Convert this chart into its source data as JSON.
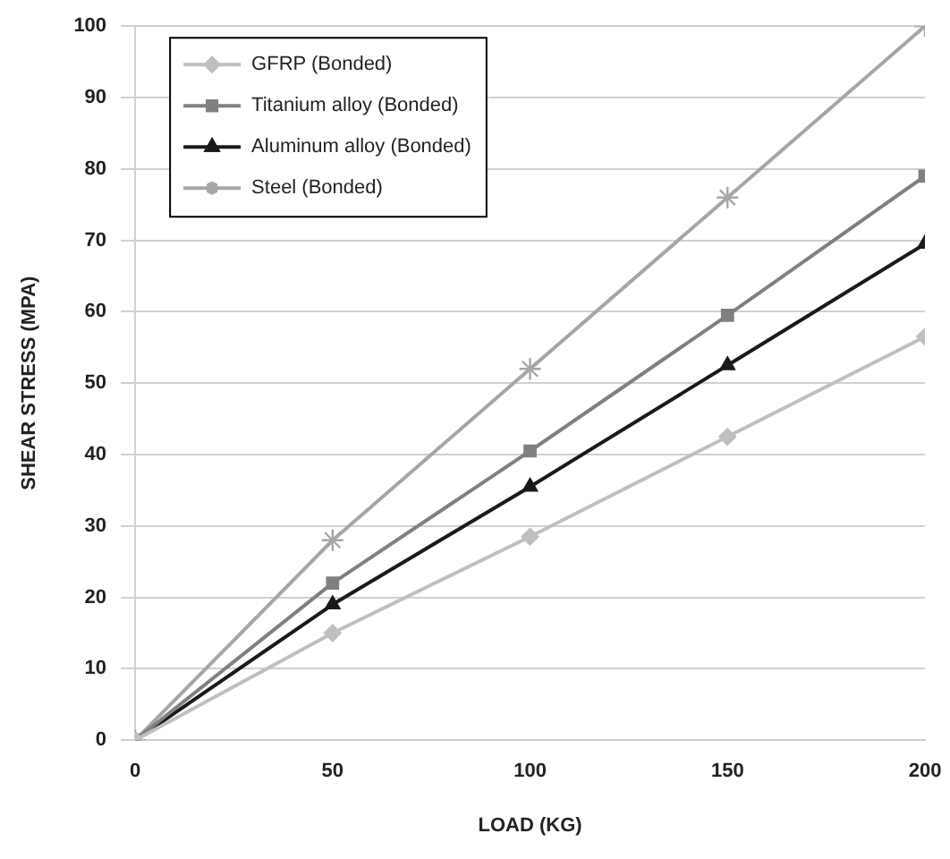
{
  "chart_data": {
    "type": "line",
    "xlabel": "LOAD (KG)",
    "ylabel": "SHEAR STRESS (MPA)",
    "x": [
      0,
      50,
      100,
      150,
      200
    ],
    "xlim": [
      0,
      200
    ],
    "xticks": [
      0,
      50,
      100,
      150,
      200
    ],
    "ylim": [
      0,
      100
    ],
    "yticks": [
      0,
      10,
      20,
      30,
      40,
      50,
      60,
      70,
      80,
      90,
      100
    ],
    "grid": "y",
    "legend": "top left",
    "line_style": "solid",
    "series": [
      {
        "name": "GFRP (Bonded)",
        "color": "#bfbfbf",
        "marker": "diamond",
        "values": [
          0,
          15,
          28.5,
          42.5,
          56.5
        ]
      },
      {
        "name": "Titanium alloy (Bonded)",
        "color": "#808080",
        "marker": "square",
        "values": [
          0,
          22,
          40.5,
          59.5,
          79
        ]
      },
      {
        "name": "Aluminum alloy (Bonded)",
        "color": "#1a1a1a",
        "marker": "triangle",
        "values": [
          0,
          19,
          35.5,
          52.5,
          69.5
        ]
      },
      {
        "name": "Steel (Bonded)",
        "color": "#a6a6a6",
        "marker": "cross",
        "values": [
          0,
          28,
          52,
          76,
          100
        ]
      }
    ]
  }
}
